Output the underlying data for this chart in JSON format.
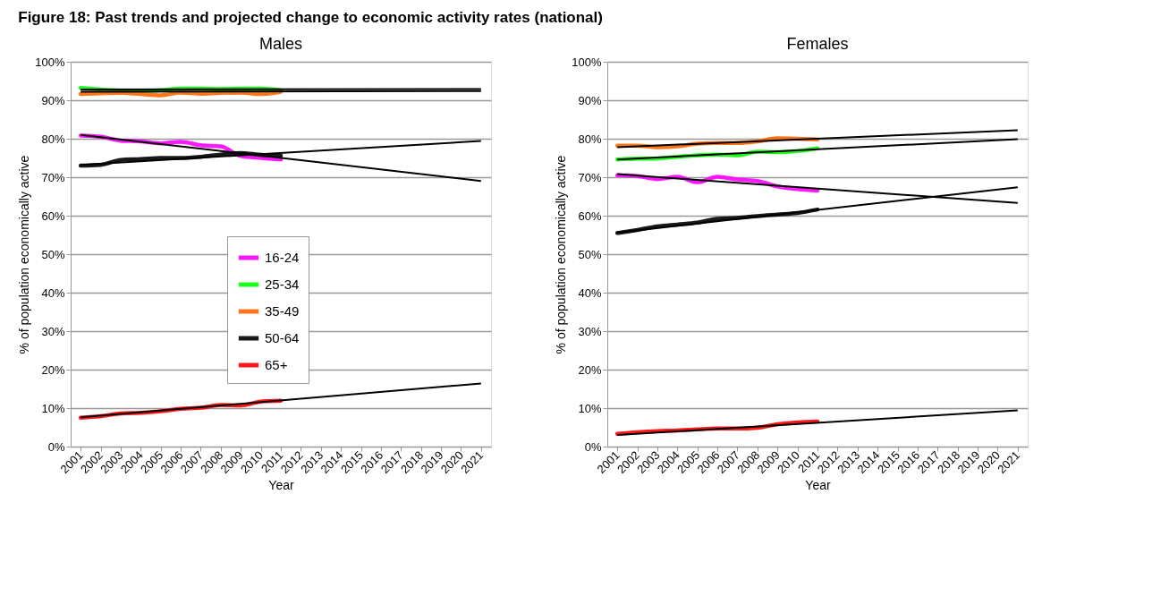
{
  "chart_data": [
    {
      "type": "line",
      "title": "Males",
      "annotations": [
        "Figure 18: Past trends and projected change to economic activity rates (national)"
      ],
      "xlabel": "Year",
      "ylabel": "% of population economically active",
      "xlim": [
        2000.5,
        2021.5
      ],
      "xticks": [
        2001,
        2002,
        2003,
        2004,
        2005,
        2006,
        2007,
        2008,
        2009,
        2010,
        2011,
        2012,
        2013,
        2014,
        2015,
        2016,
        2017,
        2018,
        2019,
        2020,
        2021
      ],
      "ylim": [
        0,
        100
      ],
      "yticks": [
        {
          "value": 0,
          "label": "0%"
        },
        {
          "value": 10,
          "label": "10%"
        },
        {
          "value": 20,
          "label": "20%"
        },
        {
          "value": 30,
          "label": "30%"
        },
        {
          "value": 40,
          "label": "40%"
        },
        {
          "value": 50,
          "label": "50%"
        },
        {
          "value": 60,
          "label": "60%"
        },
        {
          "value": 70,
          "label": "70%"
        },
        {
          "value": 80,
          "label": "80%"
        },
        {
          "value": 90,
          "label": "90%"
        },
        {
          "value": 100,
          "label": "100%"
        }
      ],
      "grid": "y",
      "legend": "center",
      "marker": "none",
      "line_style": "solid",
      "series": [
        {
          "name": "16-24",
          "color": "#ff00ff",
          "x": [
            2001,
            2002,
            2003,
            2004,
            2005,
            2006,
            2007,
            2008,
            2009,
            2010,
            2011
          ],
          "values": [
            80.8,
            80.5,
            79.5,
            79.3,
            78.8,
            79.2,
            78.3,
            78.0,
            75.5,
            75.0,
            74.6
          ]
        },
        {
          "name": "25-34",
          "color": "#00ff00",
          "x": [
            2001,
            2002,
            2003,
            2004,
            2005,
            2006,
            2007,
            2008,
            2009,
            2010,
            2011
          ],
          "values": [
            93.2,
            92.8,
            92.5,
            92.4,
            92.6,
            93.0,
            93.0,
            92.9,
            93.0,
            93.0,
            92.6
          ]
        },
        {
          "name": "35-49",
          "color": "#ff6600",
          "x": [
            2001,
            2002,
            2003,
            2004,
            2005,
            2006,
            2007,
            2008,
            2009,
            2010,
            2011
          ],
          "values": [
            91.6,
            91.8,
            91.9,
            91.6,
            91.3,
            92.0,
            91.7,
            91.9,
            92.0,
            91.6,
            92.2
          ]
        },
        {
          "name": "50-64",
          "color": "#000000",
          "x": [
            2001,
            2002,
            2003,
            2004,
            2005,
            2006,
            2007,
            2008,
            2009,
            2010,
            2011
          ],
          "values": [
            73.0,
            73.2,
            74.5,
            74.7,
            75.0,
            75.0,
            75.3,
            75.9,
            76.3,
            75.8,
            75.6
          ]
        },
        {
          "name": "65+",
          "color": "#ff0000",
          "x": [
            2001,
            2002,
            2003,
            2004,
            2005,
            2006,
            2007,
            2008,
            2009,
            2010,
            2011
          ],
          "values": [
            7.5,
            7.9,
            8.6,
            8.8,
            9.2,
            9.8,
            10.1,
            10.8,
            10.7,
            11.7,
            11.9
          ]
        },
        {
          "color": "#000000",
          "x": [
            2001,
            2021
          ],
          "values": [
            81.0,
            69.0
          ]
        },
        {
          "color": "#000000",
          "x": [
            2001,
            2021
          ],
          "values": [
            92.8,
            92.9
          ]
        },
        {
          "color": "#000000",
          "x": [
            2001,
            2021
          ],
          "values": [
            92.2,
            92.4
          ]
        },
        {
          "color": "#000000",
          "x": [
            2001,
            2021
          ],
          "values": [
            73.2,
            79.4
          ]
        },
        {
          "color": "#000000",
          "x": [
            2001,
            2021
          ],
          "values": [
            7.6,
            16.4
          ]
        }
      ]
    },
    {
      "type": "line",
      "title": "Females",
      "xlabel": "Year",
      "ylabel": "% of population economically active",
      "xlim": [
        2000.5,
        2021.5
      ],
      "xticks": [
        2001,
        2002,
        2003,
        2004,
        2005,
        2006,
        2007,
        2008,
        2009,
        2010,
        2011,
        2012,
        2013,
        2014,
        2015,
        2016,
        2017,
        2018,
        2019,
        2020,
        2021
      ],
      "ylim": [
        0,
        100
      ],
      "yticks": [
        {
          "value": 0,
          "label": "0%"
        },
        {
          "value": 10,
          "label": "10%"
        },
        {
          "value": 20,
          "label": "20%"
        },
        {
          "value": 30,
          "label": "30%"
        },
        {
          "value": 40,
          "label": "40%"
        },
        {
          "value": 50,
          "label": "50%"
        },
        {
          "value": 60,
          "label": "60%"
        },
        {
          "value": 70,
          "label": "70%"
        },
        {
          "value": 80,
          "label": "80%"
        },
        {
          "value": 90,
          "label": "90%"
        },
        {
          "value": 100,
          "label": "100%"
        }
      ],
      "grid": "y",
      "legend": "center",
      "marker": "none",
      "line_style": "solid",
      "series": [
        {
          "name": "16-24",
          "color": "#ff00ff",
          "x": [
            2001,
            2002,
            2003,
            2004,
            2005,
            2006,
            2007,
            2008,
            2009,
            2010,
            2011
          ],
          "values": [
            70.5,
            70.3,
            69.5,
            70.1,
            68.7,
            70.1,
            69.4,
            69.0,
            67.6,
            66.9,
            66.5
          ]
        },
        {
          "name": "25-34",
          "color": "#00ff00",
          "x": [
            2001,
            2002,
            2003,
            2004,
            2005,
            2006,
            2007,
            2008,
            2009,
            2010,
            2011
          ],
          "values": [
            74.6,
            74.8,
            74.9,
            75.3,
            75.7,
            75.9,
            75.7,
            76.6,
            76.5,
            76.8,
            77.5
          ]
        },
        {
          "name": "35-49",
          "color": "#ff6600",
          "x": [
            2001,
            2002,
            2003,
            2004,
            2005,
            2006,
            2007,
            2008,
            2009,
            2010,
            2011
          ],
          "values": [
            78.2,
            78.2,
            77.8,
            78.0,
            78.7,
            78.9,
            78.9,
            79.3,
            80.1,
            80.0,
            79.8
          ]
        },
        {
          "name": "50-64",
          "color": "#000000",
          "x": [
            2001,
            2002,
            2003,
            2004,
            2005,
            2006,
            2007,
            2008,
            2009,
            2010,
            2011
          ],
          "values": [
            55.5,
            56.3,
            57.2,
            57.7,
            58.2,
            59.2,
            59.4,
            59.9,
            60.3,
            60.7,
            61.6
          ]
        },
        {
          "name": "65+",
          "color": "#ff0000",
          "x": [
            2001,
            2002,
            2003,
            2004,
            2005,
            2006,
            2007,
            2008,
            2009,
            2010,
            2011
          ],
          "values": [
            3.3,
            3.7,
            4.0,
            4.2,
            4.5,
            4.7,
            4.7,
            4.9,
            5.8,
            6.3,
            6.5
          ]
        },
        {
          "color": "#000000",
          "x": [
            2001,
            2021
          ],
          "values": [
            77.8,
            82.2
          ]
        },
        {
          "color": "#000000",
          "x": [
            2001,
            2021
          ],
          "values": [
            74.6,
            79.9
          ]
        },
        {
          "color": "#000000",
          "x": [
            2001,
            2021
          ],
          "values": [
            70.8,
            63.3
          ]
        },
        {
          "color": "#000000",
          "x": [
            2001,
            2021
          ],
          "values": [
            55.6,
            67.4
          ]
        },
        {
          "color": "#000000",
          "x": [
            2001,
            2021
          ],
          "values": [
            3.0,
            9.4
          ]
        }
      ]
    }
  ]
}
